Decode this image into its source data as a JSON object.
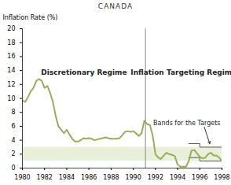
{
  "chart_data": {
    "type": "line",
    "title": "CANADA",
    "y_label": "Inflation Rate (%)",
    "color": "#9aad5c",
    "x": [
      1980,
      1980.25,
      1980.5,
      1980.75,
      1981,
      1981.25,
      1981.5,
      1981.75,
      1982,
      1982.25,
      1982.5,
      1982.75,
      1983,
      1983.25,
      1983.5,
      1983.75,
      1984,
      1984.25,
      1984.5,
      1984.75,
      1985,
      1985.25,
      1985.5,
      1985.75,
      1986,
      1986.25,
      1986.5,
      1986.75,
      1987,
      1987.25,
      1987.5,
      1987.75,
      1988,
      1988.25,
      1988.5,
      1988.75,
      1989,
      1989.25,
      1989.5,
      1989.75,
      1990,
      1990.25,
      1990.5,
      1990.75,
      1991,
      1991.25,
      1991.5,
      1991.75,
      1992,
      1992.25,
      1992.5,
      1992.75,
      1993,
      1993.25,
      1993.5,
      1993.75,
      1994,
      1994.25,
      1994.5,
      1994.75,
      1995,
      1995.25,
      1995.5,
      1995.75,
      1996,
      1996.25,
      1996.5,
      1996.75,
      1997,
      1997.25,
      1997.5,
      1997.75,
      1998
    ],
    "values": [
      9.7,
      9.5,
      10.2,
      11.0,
      11.5,
      12.5,
      12.8,
      12.5,
      11.5,
      11.8,
      10.8,
      9.5,
      7.5,
      6.0,
      5.5,
      5.0,
      5.5,
      4.8,
      4.2,
      3.8,
      3.8,
      4.0,
      4.3,
      4.2,
      4.3,
      4.2,
      4.0,
      4.1,
      4.2,
      4.3,
      4.4,
      4.3,
      4.2,
      4.2,
      4.2,
      4.3,
      4.7,
      5.2,
      5.3,
      5.2,
      5.3,
      5.0,
      4.6,
      5.0,
      6.8,
      6.3,
      6.2,
      4.7,
      2.0,
      1.5,
      1.3,
      1.8,
      2.2,
      2.0,
      1.9,
      1.7,
      0.5,
      0.2,
      0.2,
      0.2,
      1.0,
      2.5,
      2.6,
      2.1,
      1.6,
      1.4,
      1.5,
      2.0,
      2.2,
      1.8,
      1.8,
      1.5,
      1.0
    ],
    "xlim": [
      1980,
      1998
    ],
    "xticks": [
      1980,
      1982,
      1984,
      1986,
      1988,
      1990,
      1992,
      1994,
      1996,
      1998
    ],
    "ylim": [
      0,
      20
    ],
    "yticks": [
      0,
      2,
      4,
      6,
      8,
      10,
      12,
      14,
      16,
      18,
      20
    ],
    "regime_change": 1991.1,
    "target_range": [
      1,
      3
    ],
    "bands": {
      "x": [
        1995,
        1996,
        1998
      ],
      "upper": [
        3.5,
        3,
        3
      ],
      "lower": [
        1.5,
        1,
        1
      ]
    },
    "annotations": [
      "Discretionary Regime",
      "Inflation Targeting Regime",
      "Bands for the Targets"
    ],
    "grid": false
  }
}
